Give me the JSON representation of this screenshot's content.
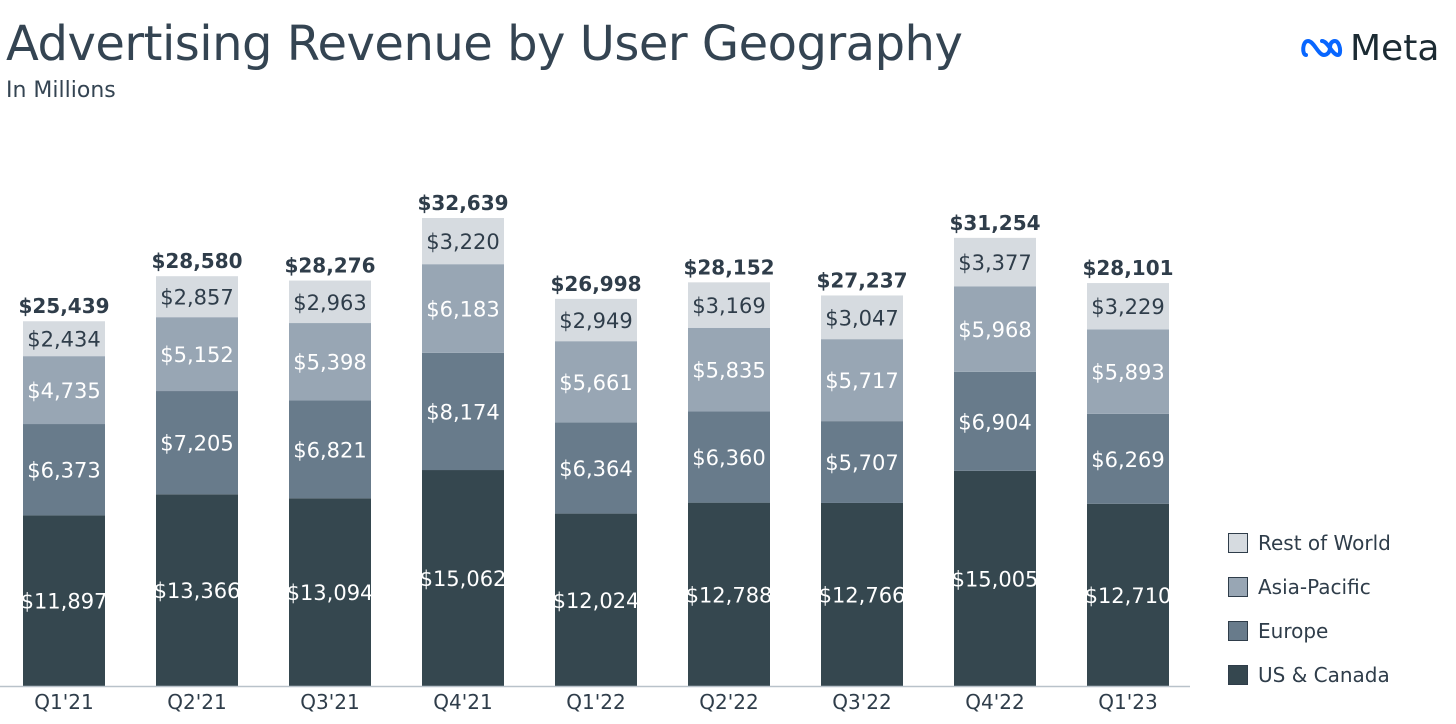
{
  "header": {
    "title": "Advertising Revenue by User Geography",
    "subtitle": "In Millions",
    "logo_text": "Meta",
    "logo_icon": "meta-infinity-icon"
  },
  "colors": {
    "rest_of_world": "#d6dbe0",
    "asia_pacific": "#98a6b4",
    "europe": "#687b8b",
    "us_canada": "#35474f",
    "label_dark": "#2f3d4a",
    "label_light": "#ffffff",
    "logo_blue": "#0866ff"
  },
  "chart_data": {
    "type": "bar",
    "stacked": true,
    "title": "Advertising Revenue by User Geography",
    "subtitle": "In Millions",
    "categories": [
      "Q1'21",
      "Q2'21",
      "Q3'21",
      "Q4'21",
      "Q1'22",
      "Q2'22",
      "Q3'22",
      "Q4'22",
      "Q1'23"
    ],
    "totals": [
      25439,
      28580,
      28276,
      32639,
      26998,
      28152,
      27237,
      31254,
      28101
    ],
    "total_labels": [
      "$25,439",
      "$28,580",
      "$28,276",
      "$32,639",
      "$26,998",
      "$28,152",
      "$27,237",
      "$31,254",
      "$28,101"
    ],
    "series": [
      {
        "name": "US & Canada",
        "color": "#35474f",
        "values": [
          11897,
          13366,
          13094,
          15062,
          12024,
          12788,
          12766,
          15005,
          12710
        ],
        "labels": [
          "$11,897",
          "$13,366",
          "$13,094",
          "$15,062",
          "$12,024",
          "$12,788",
          "$12,766",
          "$15,005",
          "$12,710"
        ]
      },
      {
        "name": "Europe",
        "color": "#687b8b",
        "values": [
          6373,
          7205,
          6821,
          8174,
          6364,
          6360,
          5707,
          6904,
          6269
        ],
        "labels": [
          "$6,373",
          "$7,205",
          "$6,821",
          "$8,174",
          "$6,364",
          "$6,360",
          "$5,707",
          "$6,904",
          "$6,269"
        ]
      },
      {
        "name": "Asia-Pacific",
        "color": "#98a6b4",
        "values": [
          4735,
          5152,
          5398,
          6183,
          5661,
          5835,
          5717,
          5968,
          5893
        ],
        "labels": [
          "$4,735",
          "$5,152",
          "$5,398",
          "$6,183",
          "$5,661",
          "$5,835",
          "$5,717",
          "$5,968",
          "$5,893"
        ]
      },
      {
        "name": "Rest of World",
        "color": "#d6dbe0",
        "values": [
          2434,
          2857,
          2963,
          3220,
          2949,
          3169,
          3047,
          3377,
          3229
        ],
        "labels": [
          "$2,434",
          "$2,857",
          "$2,963",
          "$3,220",
          "$2,949",
          "$3,169",
          "$3,047",
          "$3,377",
          "$3,229"
        ]
      }
    ],
    "legend_position": "bottom-right",
    "legend_order": [
      "Rest of World",
      "Asia-Pacific",
      "Europe",
      "US & Canada"
    ],
    "grid": false,
    "ylim": [
      0,
      32639
    ]
  }
}
